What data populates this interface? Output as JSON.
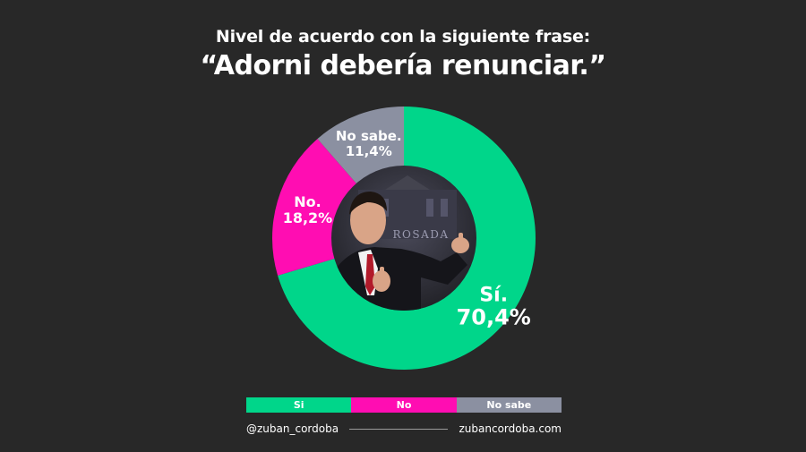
{
  "title_line1": "Nivel de acuerdo con la siguiente frase:",
  "title_line2": "“Adorni debería renunciar.”",
  "chart_data": {
    "type": "pie",
    "variant": "donut",
    "title": "“Adorni debería renunciar.”",
    "subtitle": "Nivel de acuerdo con la siguiente frase:",
    "slices": [
      {
        "label": "Sí.",
        "legend": "Si",
        "value": 70.4,
        "value_label": "70,4%",
        "color": "#00d68a"
      },
      {
        "label": "No.",
        "legend": "No",
        "value": 18.2,
        "value_label": "18,2%",
        "color": "#ff0db2"
      },
      {
        "label": "No sabe.",
        "legend": "No sabe",
        "value": 11.4,
        "value_label": "11,4%",
        "color": "#8b90a1"
      }
    ],
    "legend_position": "bottom",
    "center_image": "photo-of-spokesperson-at-casa-rosada",
    "center_image_text": "ROSADA"
  },
  "legend": {
    "items": [
      {
        "label": "Si",
        "color": "#00d68a"
      },
      {
        "label": "No",
        "color": "#ff0db2"
      },
      {
        "label": "No sabe",
        "color": "#8b90a1"
      }
    ]
  },
  "footer": {
    "handle": "@zuban_cordoba",
    "website": "zubancordoba.com"
  }
}
